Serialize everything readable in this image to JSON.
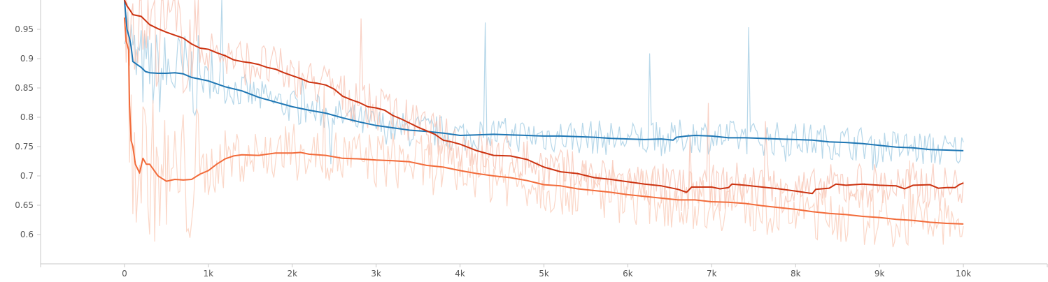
{
  "chart_data": {
    "type": "line",
    "xlim": [
      -1000,
      11000
    ],
    "ylim": [
      0.55,
      1.0
    ],
    "x_ticks": [
      0,
      1000,
      2000,
      3000,
      4000,
      5000,
      6000,
      7000,
      8000,
      9000,
      10000
    ],
    "x_tick_labels": [
      "0",
      "1k",
      "2k",
      "3k",
      "4k",
      "5k",
      "6k",
      "7k",
      "8k",
      "9k",
      "10k"
    ],
    "y_ticks": [
      0.6,
      0.65,
      0.7,
      0.75,
      0.8,
      0.85,
      0.9,
      0.95
    ],
    "y_tick_labels": [
      "0.6",
      "0.65",
      "0.7",
      "0.75",
      "0.8",
      "0.85",
      "0.9",
      "0.95"
    ],
    "grid": false,
    "series": [
      {
        "color": "#1f77b4",
        "raw_color": "#9ecae1",
        "smoothed": [
          [
            0,
            1.0
          ],
          [
            30,
            0.95
          ],
          [
            60,
            0.935
          ],
          [
            80,
            0.92
          ],
          [
            100,
            0.895
          ],
          [
            150,
            0.89
          ],
          [
            200,
            0.885
          ],
          [
            250,
            0.878
          ],
          [
            300,
            0.876
          ],
          [
            400,
            0.875
          ],
          [
            500,
            0.875
          ],
          [
            600,
            0.876
          ],
          [
            700,
            0.874
          ],
          [
            800,
            0.868
          ],
          [
            900,
            0.865
          ],
          [
            1000,
            0.862
          ],
          [
            1200,
            0.852
          ],
          [
            1400,
            0.845
          ],
          [
            1600,
            0.834
          ],
          [
            1800,
            0.826
          ],
          [
            2000,
            0.818
          ],
          [
            2200,
            0.812
          ],
          [
            2400,
            0.807
          ],
          [
            2600,
            0.799
          ],
          [
            2800,
            0.792
          ],
          [
            3000,
            0.786
          ],
          [
            3200,
            0.782
          ],
          [
            3400,
            0.778
          ],
          [
            3600,
            0.776
          ],
          [
            3800,
            0.773
          ],
          [
            4000,
            0.769
          ],
          [
            4200,
            0.77
          ],
          [
            4400,
            0.771
          ],
          [
            4600,
            0.77
          ],
          [
            4800,
            0.769
          ],
          [
            5000,
            0.768
          ],
          [
            5200,
            0.768
          ],
          [
            5400,
            0.767
          ],
          [
            5600,
            0.766
          ],
          [
            5800,
            0.764
          ],
          [
            6000,
            0.763
          ],
          [
            6200,
            0.762
          ],
          [
            6400,
            0.763
          ],
          [
            6540,
            0.761
          ],
          [
            6580,
            0.766
          ],
          [
            6700,
            0.768
          ],
          [
            6800,
            0.769
          ],
          [
            7000,
            0.768
          ],
          [
            7200,
            0.765
          ],
          [
            7400,
            0.765
          ],
          [
            7600,
            0.764
          ],
          [
            7800,
            0.763
          ],
          [
            8000,
            0.762
          ],
          [
            8200,
            0.761
          ],
          [
            8400,
            0.758
          ],
          [
            8600,
            0.757
          ],
          [
            8800,
            0.755
          ],
          [
            9000,
            0.752
          ],
          [
            9200,
            0.749
          ],
          [
            9400,
            0.748
          ],
          [
            9600,
            0.745
          ],
          [
            9800,
            0.744
          ],
          [
            10000,
            0.743
          ]
        ],
        "raw_band": 0.03
      },
      {
        "color": "#cc3311",
        "raw_color": "#f7c2b2",
        "smoothed": [
          [
            0,
            1.0
          ],
          [
            30,
            0.99
          ],
          [
            60,
            0.984
          ],
          [
            100,
            0.975
          ],
          [
            200,
            0.972
          ],
          [
            300,
            0.958
          ],
          [
            400,
            0.951
          ],
          [
            500,
            0.945
          ],
          [
            600,
            0.94
          ],
          [
            700,
            0.935
          ],
          [
            800,
            0.925
          ],
          [
            900,
            0.918
          ],
          [
            1000,
            0.916
          ],
          [
            1100,
            0.91
          ],
          [
            1200,
            0.905
          ],
          [
            1300,
            0.898
          ],
          [
            1400,
            0.895
          ],
          [
            1500,
            0.893
          ],
          [
            1600,
            0.89
          ],
          [
            1700,
            0.885
          ],
          [
            1800,
            0.882
          ],
          [
            1900,
            0.876
          ],
          [
            2000,
            0.871
          ],
          [
            2100,
            0.866
          ],
          [
            2200,
            0.86
          ],
          [
            2300,
            0.858
          ],
          [
            2400,
            0.855
          ],
          [
            2500,
            0.848
          ],
          [
            2600,
            0.836
          ],
          [
            2700,
            0.83
          ],
          [
            2800,
            0.825
          ],
          [
            2900,
            0.818
          ],
          [
            3000,
            0.816
          ],
          [
            3100,
            0.812
          ],
          [
            3200,
            0.803
          ],
          [
            3300,
            0.797
          ],
          [
            3400,
            0.79
          ],
          [
            3500,
            0.783
          ],
          [
            3600,
            0.777
          ],
          [
            3700,
            0.771
          ],
          [
            3800,
            0.761
          ],
          [
            3900,
            0.758
          ],
          [
            4000,
            0.754
          ],
          [
            4200,
            0.743
          ],
          [
            4400,
            0.735
          ],
          [
            4600,
            0.734
          ],
          [
            4800,
            0.728
          ],
          [
            5000,
            0.715
          ],
          [
            5200,
            0.707
          ],
          [
            5400,
            0.704
          ],
          [
            5600,
            0.697
          ],
          [
            5800,
            0.694
          ],
          [
            6000,
            0.69
          ],
          [
            6200,
            0.686
          ],
          [
            6400,
            0.683
          ],
          [
            6600,
            0.677
          ],
          [
            6700,
            0.672
          ],
          [
            6760,
            0.681
          ],
          [
            7000,
            0.681
          ],
          [
            7100,
            0.678
          ],
          [
            7200,
            0.68
          ],
          [
            7240,
            0.686
          ],
          [
            7400,
            0.684
          ],
          [
            7600,
            0.681
          ],
          [
            7800,
            0.678
          ],
          [
            8000,
            0.674
          ],
          [
            8200,
            0.67
          ],
          [
            8240,
            0.677
          ],
          [
            8400,
            0.679
          ],
          [
            8480,
            0.686
          ],
          [
            8600,
            0.684
          ],
          [
            8800,
            0.686
          ],
          [
            9000,
            0.684
          ],
          [
            9200,
            0.683
          ],
          [
            9300,
            0.678
          ],
          [
            9400,
            0.684
          ],
          [
            9600,
            0.685
          ],
          [
            9700,
            0.679
          ],
          [
            9800,
            0.68
          ],
          [
            9900,
            0.68
          ],
          [
            9950,
            0.685
          ],
          [
            10000,
            0.688
          ]
        ],
        "raw_band": 0.04
      },
      {
        "color": "#f26b3a",
        "raw_color": "#f9c9b6",
        "smoothed": [
          [
            0,
            0.97
          ],
          [
            20,
            0.93
          ],
          [
            50,
            0.915
          ],
          [
            60,
            0.82
          ],
          [
            80,
            0.76
          ],
          [
            100,
            0.75
          ],
          [
            130,
            0.72
          ],
          [
            180,
            0.705
          ],
          [
            220,
            0.73
          ],
          [
            260,
            0.72
          ],
          [
            300,
            0.72
          ],
          [
            400,
            0.7
          ],
          [
            500,
            0.691
          ],
          [
            600,
            0.694
          ],
          [
            700,
            0.693
          ],
          [
            800,
            0.694
          ],
          [
            900,
            0.703
          ],
          [
            1000,
            0.709
          ],
          [
            1100,
            0.72
          ],
          [
            1200,
            0.729
          ],
          [
            1300,
            0.734
          ],
          [
            1400,
            0.736
          ],
          [
            1600,
            0.735
          ],
          [
            1800,
            0.739
          ],
          [
            2000,
            0.739
          ],
          [
            2100,
            0.74
          ],
          [
            2200,
            0.737
          ],
          [
            2400,
            0.735
          ],
          [
            2600,
            0.73
          ],
          [
            2800,
            0.729
          ],
          [
            3000,
            0.727
          ],
          [
            3200,
            0.726
          ],
          [
            3400,
            0.724
          ],
          [
            3600,
            0.718
          ],
          [
            3800,
            0.715
          ],
          [
            4000,
            0.709
          ],
          [
            4200,
            0.704
          ],
          [
            4400,
            0.7
          ],
          [
            4600,
            0.697
          ],
          [
            4800,
            0.692
          ],
          [
            5000,
            0.685
          ],
          [
            5200,
            0.683
          ],
          [
            5400,
            0.678
          ],
          [
            5600,
            0.675
          ],
          [
            5800,
            0.672
          ],
          [
            6000,
            0.668
          ],
          [
            6200,
            0.665
          ],
          [
            6400,
            0.662
          ],
          [
            6600,
            0.659
          ],
          [
            6800,
            0.659
          ],
          [
            7000,
            0.656
          ],
          [
            7200,
            0.655
          ],
          [
            7400,
            0.653
          ],
          [
            7600,
            0.649
          ],
          [
            7800,
            0.646
          ],
          [
            8000,
            0.643
          ],
          [
            8200,
            0.639
          ],
          [
            8400,
            0.636
          ],
          [
            8600,
            0.634
          ],
          [
            8800,
            0.631
          ],
          [
            9000,
            0.629
          ],
          [
            9200,
            0.626
          ],
          [
            9400,
            0.624
          ],
          [
            9600,
            0.621
          ],
          [
            9800,
            0.619
          ],
          [
            10000,
            0.618
          ]
        ],
        "raw_band": 0.05
      }
    ]
  }
}
